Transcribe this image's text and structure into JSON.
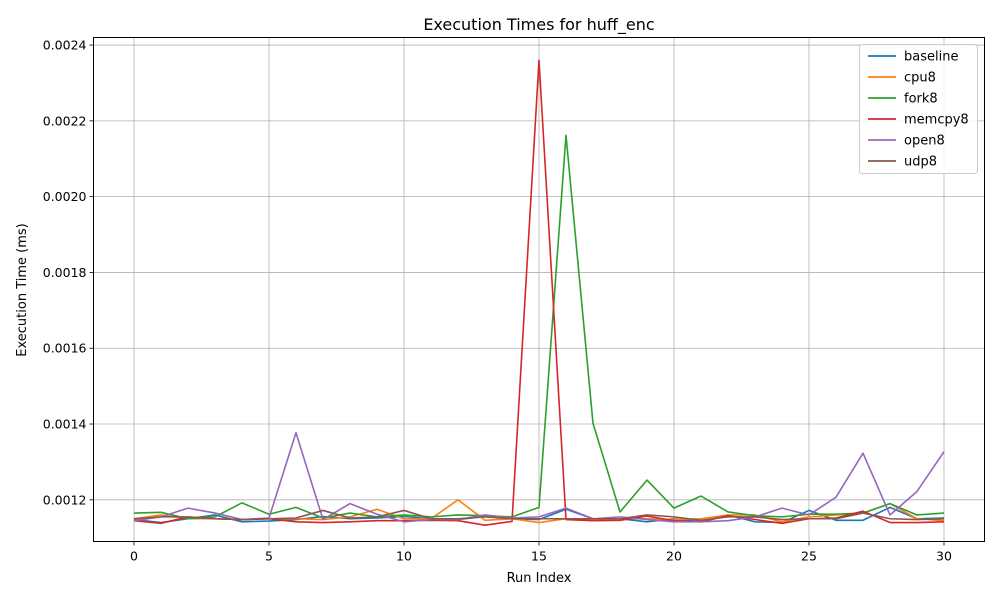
{
  "chart_data": {
    "type": "line",
    "title": "Execution Times for huff_enc",
    "xlabel": "Run Index",
    "ylabel": "Execution Time (ms)",
    "xlim": [
      -1.5,
      31.5
    ],
    "ylim": [
      0.00109,
      0.00242
    ],
    "xticks": [
      0,
      5,
      10,
      15,
      20,
      25,
      30
    ],
    "xtick_labels": [
      "0",
      "5",
      "10",
      "15",
      "20",
      "25",
      "30"
    ],
    "yticks": [
      0.0012,
      0.0014,
      0.0016,
      0.0018,
      0.002,
      0.0022,
      0.0024
    ],
    "ytick_labels": [
      "0.0012",
      "0.0014",
      "0.0016",
      "0.0018",
      "0.0020",
      "0.0022",
      "0.0024"
    ],
    "grid": true,
    "legend_position": "top-right",
    "x": [
      0,
      1,
      2,
      3,
      4,
      5,
      6,
      7,
      8,
      9,
      10,
      11,
      12,
      13,
      14,
      15,
      16,
      17,
      18,
      19,
      20,
      21,
      22,
      23,
      24,
      25,
      26,
      27,
      28,
      29,
      30
    ],
    "series": [
      {
        "name": "baseline",
        "color": "#1f77b4",
        "values": [
          0.001148,
          0.00114,
          0.00115,
          0.00116,
          0.001142,
          0.001144,
          0.001148,
          0.001156,
          0.00115,
          0.001152,
          0.001156,
          0.00115,
          0.001148,
          0.001156,
          0.00115,
          0.001148,
          0.001175,
          0.00115,
          0.00115,
          0.001142,
          0.00115,
          0.001142,
          0.00116,
          0.001142,
          0.00114,
          0.001172,
          0.001146,
          0.001146,
          0.00118,
          0.00115,
          0.001152
        ]
      },
      {
        "name": "cpu8",
        "color": "#ff7f0e",
        "values": [
          0.00115,
          0.00116,
          0.00115,
          0.00115,
          0.001148,
          0.00115,
          0.00115,
          0.001148,
          0.001155,
          0.001175,
          0.00115,
          0.00115,
          0.0012,
          0.001146,
          0.00115,
          0.00114,
          0.00115,
          0.001148,
          0.00115,
          0.00115,
          0.001148,
          0.00115,
          0.00116,
          0.00116,
          0.001142,
          0.001155,
          0.00116,
          0.001165,
          0.00119,
          0.00115,
          0.001145
        ]
      },
      {
        "name": "fork8",
        "color": "#2ca02c",
        "values": [
          0.001165,
          0.001167,
          0.00115,
          0.001155,
          0.001192,
          0.001162,
          0.00118,
          0.001152,
          0.001165,
          0.001155,
          0.00116,
          0.001155,
          0.00116,
          0.001158,
          0.001155,
          0.00118,
          0.002162,
          0.001402,
          0.001168,
          0.001252,
          0.001178,
          0.00121,
          0.001168,
          0.001158,
          0.001155,
          0.001162,
          0.001162,
          0.001165,
          0.00119,
          0.00116,
          0.001165
        ]
      },
      {
        "name": "memcpy8",
        "color": "#d62728",
        "values": [
          0.001145,
          0.001138,
          0.001155,
          0.00115,
          0.001148,
          0.00115,
          0.001142,
          0.00114,
          0.001142,
          0.001145,
          0.001145,
          0.001146,
          0.001145,
          0.001133,
          0.001143,
          0.00236,
          0.001148,
          0.001145,
          0.001146,
          0.001157,
          0.001145,
          0.001142,
          0.001158,
          0.001148,
          0.001138,
          0.00115,
          0.001152,
          0.00117,
          0.00114,
          0.00114,
          0.001142
        ]
      },
      {
        "name": "open8",
        "color": "#9467bd",
        "values": [
          0.001145,
          0.001155,
          0.001178,
          0.001165,
          0.001148,
          0.001152,
          0.001377,
          0.001148,
          0.00119,
          0.001162,
          0.001142,
          0.001148,
          0.001148,
          0.00116,
          0.001152,
          0.001155,
          0.001178,
          0.00115,
          0.001155,
          0.001148,
          0.001142,
          0.001142,
          0.001145,
          0.001155,
          0.001178,
          0.00116,
          0.001207,
          0.001323,
          0.00116,
          0.001222,
          0.001327
        ]
      },
      {
        "name": "udp8",
        "color": "#8c564b",
        "values": [
          0.00115,
          0.001155,
          0.001155,
          0.00115,
          0.001148,
          0.00115,
          0.001152,
          0.001172,
          0.001152,
          0.001155,
          0.001172,
          0.00115,
          0.00115,
          0.001155,
          0.00115,
          0.00115,
          0.00115,
          0.00115,
          0.00115,
          0.00116,
          0.001155,
          0.001146,
          0.001155,
          0.001155,
          0.001148,
          0.00115,
          0.00115,
          0.001165,
          0.00115,
          0.001148,
          0.00115
        ]
      }
    ]
  }
}
